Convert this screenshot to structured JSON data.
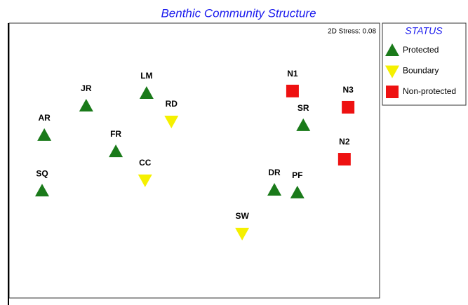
{
  "chart_data": {
    "type": "scatter",
    "title": "Benthic Community Structure",
    "annotation": "2D Stress: 0.08",
    "legend_title": "STATUS",
    "xlim": [
      0,
      100
    ],
    "ylim": [
      0,
      100
    ],
    "series": [
      {
        "name": "Protected",
        "color": "#1a7a1a",
        "marker": "triangle-up",
        "labels": [
          "AR",
          "JR",
          "LM",
          "FR",
          "SQ",
          "DR",
          "PF",
          "SR"
        ],
        "x": [
          9.5,
          20.8,
          37.1,
          28.8,
          8.9,
          71.6,
          77.8,
          79.4
        ],
        "y": [
          59.2,
          69.9,
          74.5,
          53.3,
          39.0,
          39.3,
          38.3,
          62.8
        ]
      },
      {
        "name": "Boundary",
        "color": "#f5f000",
        "marker": "triangle-down",
        "labels": [
          "RD",
          "CC",
          "SW"
        ],
        "x": [
          43.8,
          36.7,
          62.9
        ],
        "y": [
          64.3,
          42.9,
          23.5
        ]
      },
      {
        "name": "Non-protected",
        "color": "#ee1111",
        "marker": "square",
        "labels": [
          "N1",
          "N3",
          "N2"
        ],
        "x": [
          76.5,
          91.5,
          90.5
        ],
        "y": [
          75.3,
          69.4,
          50.5
        ]
      }
    ]
  }
}
